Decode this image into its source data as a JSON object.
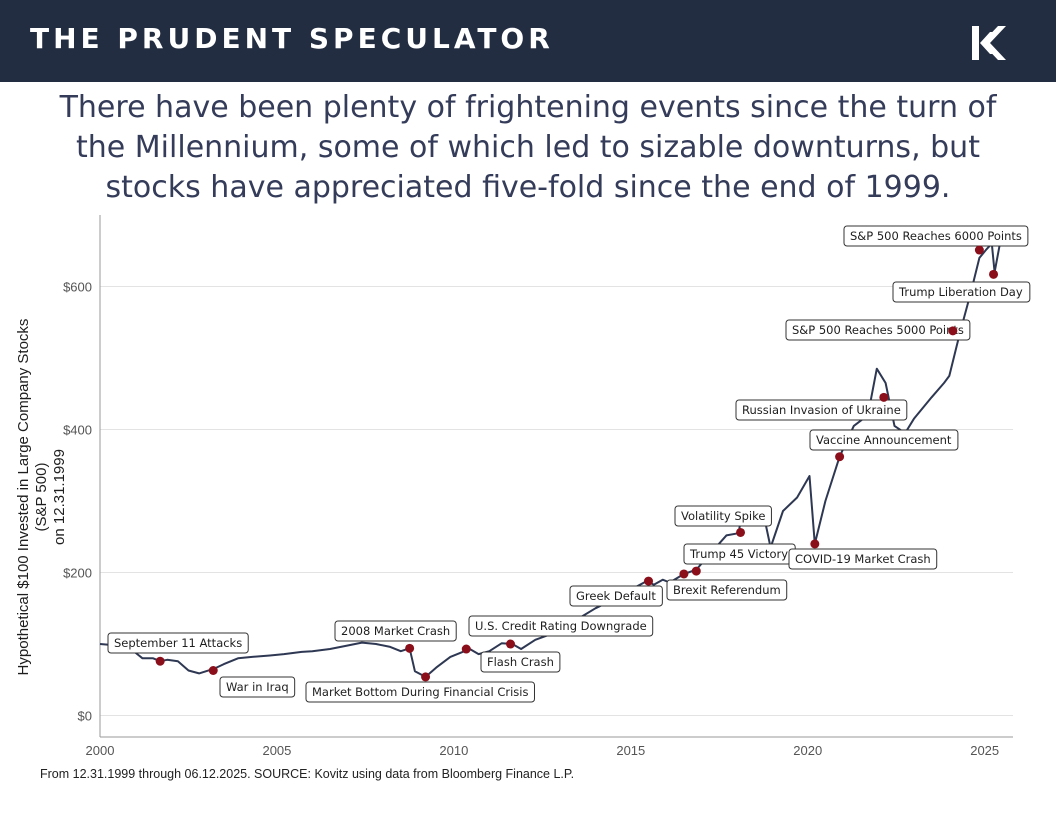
{
  "header": {
    "brand": "THE PRUDENT SPECULATOR",
    "logo_icon": "kovitz-k-logo-icon",
    "background": "#232d42"
  },
  "headline": {
    "lines": [
      "There have been plenty of frightening events since the turn of",
      "the Millennium, some of which led to sizable downturns, but",
      "stocks have appreciated five-fold since the end of 1999."
    ]
  },
  "footer": {
    "source": "From 12.31.1999 through 06.12.2025. SOURCE: Kovitz using data from Bloomberg Finance L.P."
  },
  "chart_data": {
    "type": "line",
    "ylabel": "Hypothetical $100 Invested in Large Company Stocks (S&P 500) on 12.31.1999",
    "ylabel_lines": [
      "Hypothetical $100 Invested in Large Company Stocks (S&P 500)",
      "on 12.31.1999"
    ],
    "xlim": [
      2000,
      2025.8
    ],
    "ylim": [
      -30,
      700
    ],
    "x_ticks": [
      2000,
      2005,
      2010,
      2015,
      2020,
      2025
    ],
    "y_ticks": [
      0,
      200,
      400,
      600
    ],
    "y_tick_labels": [
      "$0",
      "$200",
      "$400",
      "$600"
    ],
    "grid": "horizontal",
    "line_color": "#2e3853",
    "event_color": "#8b0f1a",
    "series": [
      {
        "x": [
          2000.0,
          2000.25,
          2000.5,
          2000.7,
          2001.0,
          2001.2,
          2001.5,
          2001.7,
          2001.9,
          2002.2,
          2002.5,
          2002.8,
          2003.0,
          2003.2,
          2003.5,
          2003.9,
          2004.3,
          2004.8,
          2005.2,
          2005.7,
          2006.0,
          2006.5,
          2007.0,
          2007.4,
          2007.8,
          2008.2,
          2008.5,
          2008.75,
          2008.9,
          2009.2,
          2009.5,
          2009.9,
          2010.3,
          2010.45,
          2010.7,
          2011.0,
          2011.35,
          2011.65,
          2011.9,
          2012.3,
          2012.7,
          2013.0,
          2013.5,
          2014.0,
          2014.5,
          2015.0,
          2015.45,
          2015.65,
          2015.9,
          2016.1,
          2016.5,
          2016.85,
          2017.2,
          2017.7,
          2018.05,
          2018.1,
          2018.5,
          2018.75,
          2018.95,
          2019.3,
          2019.7,
          2020.05,
          2020.2,
          2020.5,
          2020.9,
          2021.3,
          2021.7,
          2021.95,
          2022.2,
          2022.45,
          2022.75,
          2023.0,
          2023.5,
          2023.85,
          2024.0,
          2024.3,
          2024.6,
          2024.85,
          2025.05,
          2025.2,
          2025.28,
          2025.45
        ],
        "y": [
          100,
          99,
          100,
          94,
          88,
          80,
          80,
          76,
          78,
          76,
          63,
          59,
          62,
          65,
          72,
          80,
          82,
          84,
          86,
          89,
          90,
          93,
          98,
          102,
          100,
          96,
          90,
          94,
          62,
          54,
          67,
          82,
          90,
          93,
          86,
          90,
          101,
          100,
          93,
          106,
          113,
          119,
          135,
          150,
          162,
          176,
          188,
          183,
          190,
          186,
          198,
          204,
          224,
          252,
          255,
          272,
          288,
          282,
          235,
          286,
          305,
          335,
          240,
          300,
          362,
          405,
          420,
          485,
          465,
          405,
          395,
          415,
          445,
          465,
          475,
          535,
          590,
          640,
          652,
          660,
          620,
          665
        ]
      }
    ],
    "events": [
      {
        "label": "September 11 Attacks",
        "x": 2001.7,
        "y": 76
      },
      {
        "label": "War in Iraq",
        "x": 2003.2,
        "y": 63
      },
      {
        "label": "2008 Market Crash",
        "x": 2008.75,
        "y": 94
      },
      {
        "label": "Market Bottom During Financial Crisis",
        "x": 2009.2,
        "y": 54
      },
      {
        "label": "U.S. Credit Rating Downgrade",
        "x": 2010.35,
        "y": 93
      },
      {
        "label": "Flash Crash",
        "x": 2011.6,
        "y": 100
      },
      {
        "label": "Greek Default",
        "x": 2015.5,
        "y": 188
      },
      {
        "label": "Trump 45 Victory",
        "x": 2016.5,
        "y": 198
      },
      {
        "label": "Brexit Referendum",
        "x": 2016.85,
        "y": 202
      },
      {
        "label": "Volatility Spike",
        "x": 2018.1,
        "y": 256
      },
      {
        "label": "COVID-19 Market Crash",
        "x": 2020.2,
        "y": 240
      },
      {
        "label": "Vaccine Announcement",
        "x": 2020.9,
        "y": 362
      },
      {
        "label": "Russian Invasion of Ukraine",
        "x": 2022.15,
        "y": 445
      },
      {
        "label": "S&P 500 Reaches 5000 Points",
        "x": 2024.1,
        "y": 538
      },
      {
        "label": "S&P 500 Reaches 6000 Points",
        "x": 2024.85,
        "y": 651
      },
      {
        "label": "Trump Liberation Day",
        "x": 2025.25,
        "y": 617
      }
    ]
  }
}
